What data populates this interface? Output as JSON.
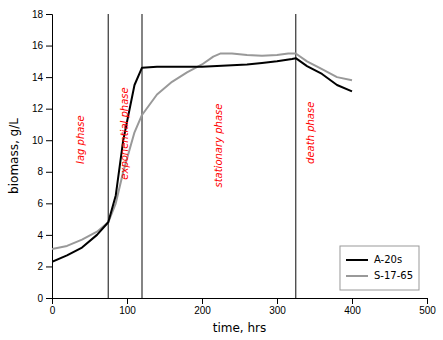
{
  "chart_data": {
    "type": "line",
    "xlabel": "time, hrs",
    "ylabel": "biomass, g/L",
    "xlim": [
      0,
      500
    ],
    "ylim": [
      0,
      18
    ],
    "xticks": [
      0,
      100,
      200,
      300,
      400,
      500
    ],
    "yticks": [
      0,
      2,
      4,
      6,
      8,
      10,
      12,
      14,
      16,
      18
    ],
    "grid": false,
    "legend": "lower right",
    "vlines": [
      75,
      120,
      325
    ],
    "annotations": [
      {
        "text": "lag phase",
        "x": 38,
        "y": 8.5,
        "color": "#ff0000"
      },
      {
        "text": "exponential phase",
        "x": 97,
        "y": 7.5,
        "color": "#ff0000"
      },
      {
        "text": "stationary phase",
        "x": 222,
        "y": 7.0,
        "color": "#ff0000"
      },
      {
        "text": "death phase",
        "x": 345,
        "y": 8.5,
        "color": "#ff0000"
      }
    ],
    "series": [
      {
        "name": "A-20s",
        "color": "#000000",
        "x": [
          0,
          20,
          40,
          60,
          75,
          85,
          95,
          110,
          120,
          140,
          160,
          180,
          200,
          220,
          240,
          260,
          280,
          300,
          320,
          325,
          340,
          360,
          380,
          400
        ],
        "values": [
          2.3,
          2.7,
          3.2,
          4.0,
          4.8,
          6.5,
          10.0,
          13.5,
          14.6,
          14.65,
          14.65,
          14.65,
          14.65,
          14.7,
          14.75,
          14.8,
          14.9,
          15.0,
          15.15,
          15.2,
          14.7,
          14.2,
          13.5,
          13.1
        ]
      },
      {
        "name": "S-17-65",
        "color": "#999999",
        "x": [
          0,
          20,
          40,
          60,
          75,
          85,
          95,
          110,
          120,
          140,
          160,
          180,
          200,
          215,
          225,
          240,
          260,
          280,
          300,
          315,
          325,
          340,
          360,
          380,
          400
        ],
        "values": [
          3.1,
          3.3,
          3.7,
          4.2,
          4.8,
          6.0,
          8.0,
          10.5,
          11.6,
          12.9,
          13.7,
          14.3,
          14.8,
          15.3,
          15.5,
          15.5,
          15.4,
          15.35,
          15.4,
          15.5,
          15.5,
          15.0,
          14.5,
          14.0,
          13.8
        ]
      }
    ]
  }
}
